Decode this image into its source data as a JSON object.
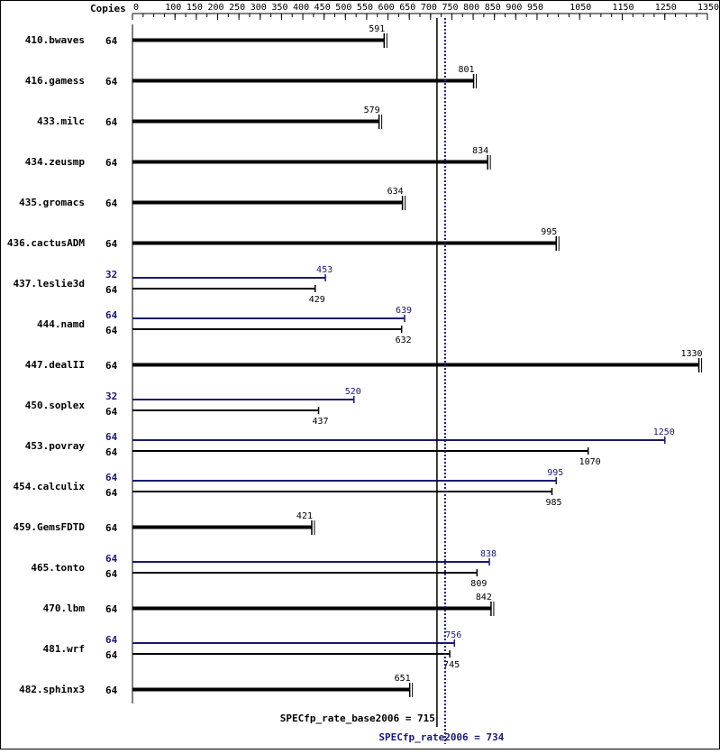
{
  "chart_data": {
    "type": "bar",
    "orientation": "horizontal",
    "title": "",
    "copies_header": "Copies",
    "x_axis": {
      "min": 0,
      "max": 1350,
      "ticks": [
        0,
        100,
        150,
        200,
        250,
        300,
        350,
        400,
        450,
        500,
        550,
        600,
        650,
        700,
        750,
        800,
        850,
        900,
        950,
        1050,
        1150,
        1250,
        1350
      ],
      "minor_step": 25,
      "position": "top"
    },
    "colors": {
      "base": "#000000",
      "peak": "#191970",
      "border": "#000000",
      "background": "#ffffff"
    },
    "reference_lines": [
      {
        "id": "base",
        "label": "SPECfp_rate_base2006 = 715",
        "value": 715,
        "style": "solid"
      },
      {
        "id": "peak",
        "label": "SPECfp_rate2006 = 734",
        "value": 734,
        "style": "dotted"
      }
    ],
    "benchmarks": [
      {
        "name": "410.bwaves",
        "base": {
          "copies": "64",
          "value": 591
        }
      },
      {
        "name": "416.gamess",
        "base": {
          "copies": "64",
          "value": 801
        }
      },
      {
        "name": "433.milc",
        "base": {
          "copies": "64",
          "value": 579
        }
      },
      {
        "name": "434.zeusmp",
        "base": {
          "copies": "64",
          "value": 834
        }
      },
      {
        "name": "435.gromacs",
        "base": {
          "copies": "64",
          "value": 634
        }
      },
      {
        "name": "436.cactusADM",
        "base": {
          "copies": "64",
          "value": 995
        }
      },
      {
        "name": "437.leslie3d",
        "peak": {
          "copies": "32",
          "value": 453
        },
        "base": {
          "copies": "64",
          "value": 429
        }
      },
      {
        "name": "444.namd",
        "peak": {
          "copies": "64",
          "value": 639
        },
        "base": {
          "copies": "64",
          "value": 632
        }
      },
      {
        "name": "447.dealII",
        "base": {
          "copies": "64",
          "value": 1330
        }
      },
      {
        "name": "450.soplex",
        "peak": {
          "copies": "32",
          "value": 520
        },
        "base": {
          "copies": "64",
          "value": 437
        }
      },
      {
        "name": "453.povray",
        "peak": {
          "copies": "64",
          "value": 1250
        },
        "base": {
          "copies": "64",
          "value": 1070
        }
      },
      {
        "name": "454.calculix",
        "peak": {
          "copies": "64",
          "value": 995
        },
        "base": {
          "copies": "64",
          "value": 985
        }
      },
      {
        "name": "459.GemsFDTD",
        "base": {
          "copies": "64",
          "value": 421
        }
      },
      {
        "name": "465.tonto",
        "peak": {
          "copies": "64",
          "value": 838
        },
        "base": {
          "copies": "64",
          "value": 809
        }
      },
      {
        "name": "470.lbm",
        "base": {
          "copies": "64",
          "value": 842
        }
      },
      {
        "name": "481.wrf",
        "peak": {
          "copies": "64",
          "value": 756
        },
        "base": {
          "copies": "64",
          "value": 745
        }
      },
      {
        "name": "482.sphinx3",
        "base": {
          "copies": "64",
          "value": 651
        }
      }
    ]
  }
}
